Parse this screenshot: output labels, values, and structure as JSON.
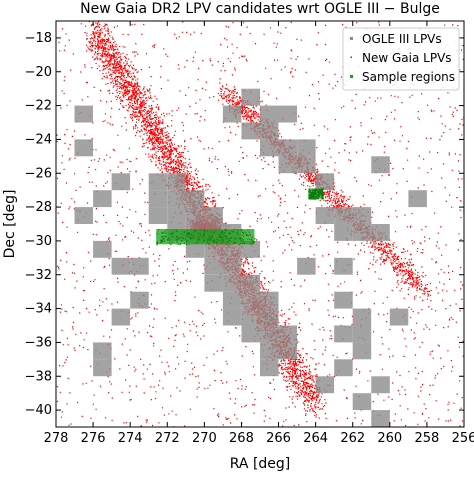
{
  "chart_data": {
    "type": "scatter",
    "title": "New Gaia DR2 LPV candidates wrt OGLE III  −  Bulge",
    "xlabel": "RA  [deg]",
    "ylabel": "Dec  [deg]",
    "xlim": [
      278,
      256
    ],
    "ylim": [
      -41,
      -17
    ],
    "x_reversed": true,
    "grid": false,
    "legend_position": "top-right",
    "x_ticks": [
      278,
      276,
      274,
      272,
      270,
      268,
      266,
      264,
      262,
      260,
      258,
      256
    ],
    "x_tick_labels": [
      "278",
      "276",
      "274",
      "272",
      "270",
      "268",
      "266",
      "264",
      "262",
      "260",
      "258",
      "256"
    ],
    "y_ticks": [
      -18,
      -20,
      -22,
      -24,
      -26,
      -28,
      -30,
      -32,
      -34,
      -36,
      -38,
      -40
    ],
    "y_tick_labels": [
      "−18",
      "−20",
      "−22",
      "−24",
      "−26",
      "−28",
      "−30",
      "−32",
      "−34",
      "−36",
      "−38",
      "−40"
    ],
    "colors": {
      "ogle": "#8c8c8c",
      "gaia": "#ff0000",
      "sample": "#17a217"
    },
    "series": [
      {
        "name": "OGLE III LPVs",
        "marker": "gray-square-blocks",
        "points": [
          [
            272.5,
            -26.5
          ],
          [
            271.5,
            -26.5
          ],
          [
            270.5,
            -27.5
          ],
          [
            271.5,
            -27.5
          ],
          [
            272.5,
            -27.5
          ],
          [
            269.5,
            -28.5
          ],
          [
            270.5,
            -28.5
          ],
          [
            271.5,
            -28.5
          ],
          [
            272.5,
            -28.5
          ],
          [
            269.5,
            -29.5
          ],
          [
            270.5,
            -29.5
          ],
          [
            271.5,
            -29.5
          ],
          [
            268.5,
            -29.5
          ],
          [
            269.5,
            -30.5
          ],
          [
            270.5,
            -30.5
          ],
          [
            268.5,
            -30.5
          ],
          [
            267.5,
            -30.5
          ],
          [
            269.5,
            -31.5
          ],
          [
            268.5,
            -31.5
          ],
          [
            268.5,
            -32.5
          ],
          [
            267.5,
            -32.5
          ],
          [
            269.5,
            -32.5
          ],
          [
            268.5,
            -33.5
          ],
          [
            267.5,
            -33.5
          ],
          [
            266.5,
            -33.5
          ],
          [
            267.5,
            -34.5
          ],
          [
            266.5,
            -34.5
          ],
          [
            268.5,
            -34.5
          ],
          [
            266.5,
            -35.5
          ],
          [
            267.5,
            -35.5
          ],
          [
            265.5,
            -35.5
          ],
          [
            265.5,
            -36.5
          ],
          [
            266.5,
            -36.5
          ],
          [
            266.5,
            -37.5
          ],
          [
            275.5,
            -36.5
          ],
          [
            274.5,
            -34.5
          ],
          [
            275.5,
            -37.5
          ],
          [
            273.5,
            -31.5
          ],
          [
            274.5,
            -31.5
          ],
          [
            275.5,
            -30.5
          ],
          [
            273.5,
            -33.5
          ],
          [
            267.5,
            -23.5
          ],
          [
            266.5,
            -23.5
          ],
          [
            265.5,
            -24.5
          ],
          [
            266.5,
            -24.5
          ],
          [
            264.5,
            -24.5
          ],
          [
            265.5,
            -25.5
          ],
          [
            264.5,
            -25.5
          ],
          [
            263.5,
            -26.5
          ],
          [
            268.5,
            -22.5
          ],
          [
            266.5,
            -22.5
          ],
          [
            267.5,
            -21.5
          ],
          [
            265.5,
            -22.5
          ],
          [
            263.5,
            -28.5
          ],
          [
            262.5,
            -28.5
          ],
          [
            261.5,
            -28.5
          ],
          [
            261.5,
            -29.5
          ],
          [
            260.5,
            -29.5
          ],
          [
            262.5,
            -29.5
          ],
          [
            262.5,
            -33.5
          ],
          [
            261.5,
            -34.5
          ],
          [
            262.5,
            -35.5
          ],
          [
            261.5,
            -35.5
          ],
          [
            261.5,
            -36.5
          ],
          [
            262.5,
            -37.5
          ],
          [
            260.5,
            -38.5
          ],
          [
            261.5,
            -39.5
          ],
          [
            260.5,
            -40.5
          ],
          [
            276.5,
            -22.5
          ],
          [
            276.5,
            -24.5
          ],
          [
            275.5,
            -27.5
          ],
          [
            276.5,
            -28.5
          ],
          [
            259.5,
            -34.5
          ],
          [
            260.5,
            -25.5
          ],
          [
            258.5,
            -27.5
          ],
          [
            263.5,
            -38.5
          ],
          [
            274.5,
            -26.5
          ],
          [
            262.5,
            -31.5
          ],
          [
            264.5,
            -31.5
          ]
        ]
      },
      {
        "name": "New Gaia LPVs",
        "marker": "red-dots"
      },
      {
        "name": "Sample regions",
        "marker": "green-dots",
        "regions": [
          {
            "ra": [
              267.3,
              272.6
            ],
            "dec": [
              -30.2,
              -29.3
            ]
          },
          {
            "ra": [
              263.6,
              264.4
            ],
            "dec": [
              -27.5,
              -26.9
            ]
          }
        ]
      }
    ]
  }
}
